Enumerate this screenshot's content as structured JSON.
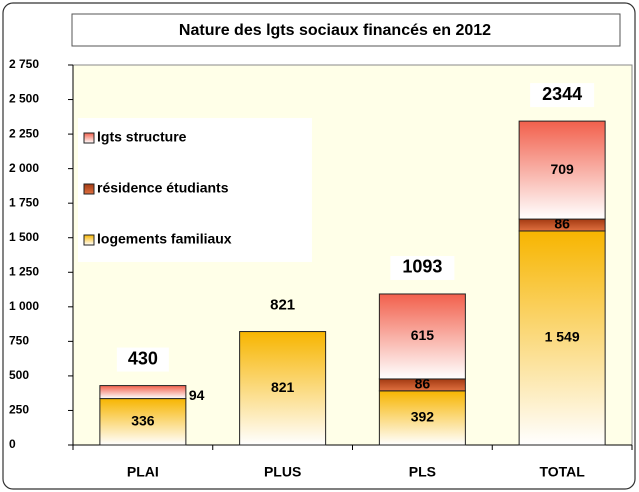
{
  "chart_data": {
    "type": "stacked_bar",
    "title": "Nature des lgts sociaux financés en 2012",
    "categories": [
      "PLAI",
      "PLUS",
      "PLS",
      "TOTAL"
    ],
    "series": [
      {
        "name": "logements familiaux",
        "color": "#f7b500",
        "values": [
          336,
          821,
          392,
          1549
        ],
        "value_labels": [
          "336",
          "821",
          "392",
          "1 549"
        ]
      },
      {
        "name": "résidence étudiants",
        "color": "#a33a12",
        "values": [
          null,
          null,
          86,
          86
        ]
      },
      {
        "name": "lgts structure",
        "color": "#f2604c",
        "values": [
          94,
          null,
          615,
          709
        ]
      }
    ],
    "totals": [
      430,
      821,
      1093,
      2344
    ],
    "ylim": [
      0,
      2750
    ],
    "yticks": [
      0,
      250,
      500,
      750,
      {
        "value": 1000,
        "label": "1 000"
      },
      {
        "value": 1250,
        "label": "1 250"
      },
      {
        "value": 1500,
        "label": "1 500"
      },
      {
        "value": 1750,
        "label": "1 750"
      },
      {
        "value": 2000,
        "label": "2 000"
      },
      {
        "value": 2250,
        "label": "2 250"
      },
      {
        "value": 2500,
        "label": "2 500"
      },
      {
        "value": 2750,
        "label": "2 750"
      }
    ],
    "legend": "upper left",
    "grid": false
  }
}
